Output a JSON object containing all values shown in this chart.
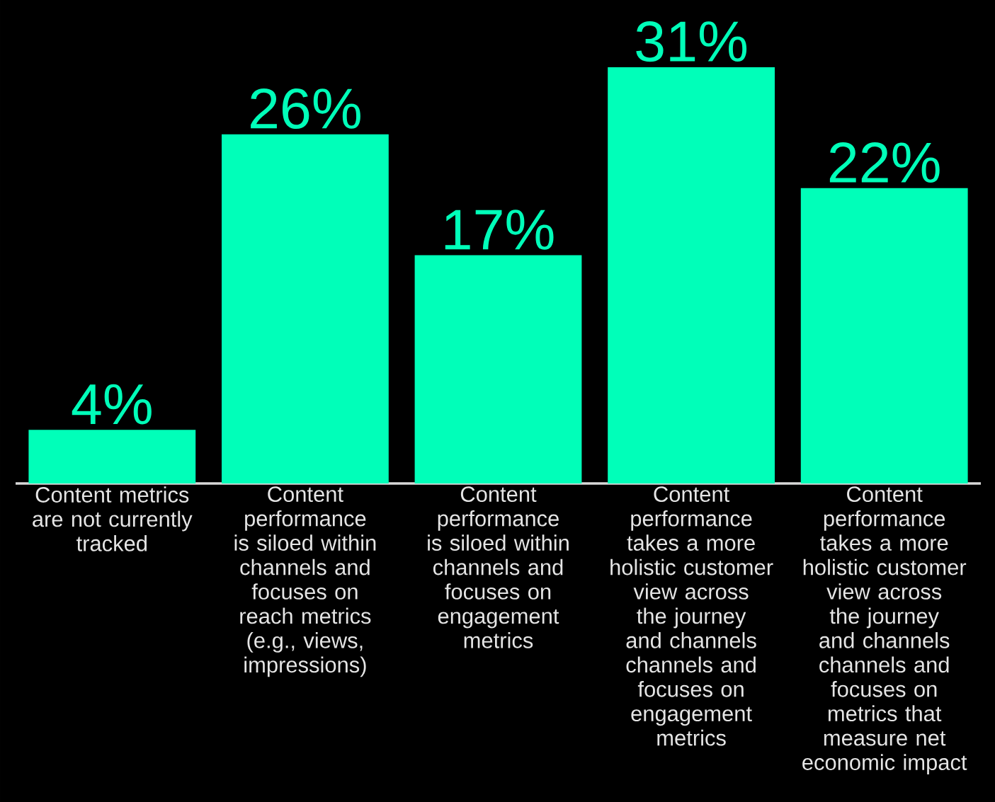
{
  "chart_data": {
    "type": "bar",
    "categories": [
      "Content metrics are not currently tracked",
      "Content performance is siloed within channels and focuses on reach metrics (e.g., views, impressions)",
      "Content performance is siloed within channels and focuses on engagement metrics",
      "Content performance takes a more holistic customer view across the journey and channels channels and focuses on engagement metrics",
      "Content performance takes a more holistic customer view across the journey and channels channels and focuses on metrics that measure net economic impact"
    ],
    "values": [
      4,
      26,
      17,
      31,
      22
    ],
    "value_labels": [
      "4%",
      "26%",
      "17%",
      "31%",
      "22%"
    ],
    "color": "#00ffb9"
  }
}
